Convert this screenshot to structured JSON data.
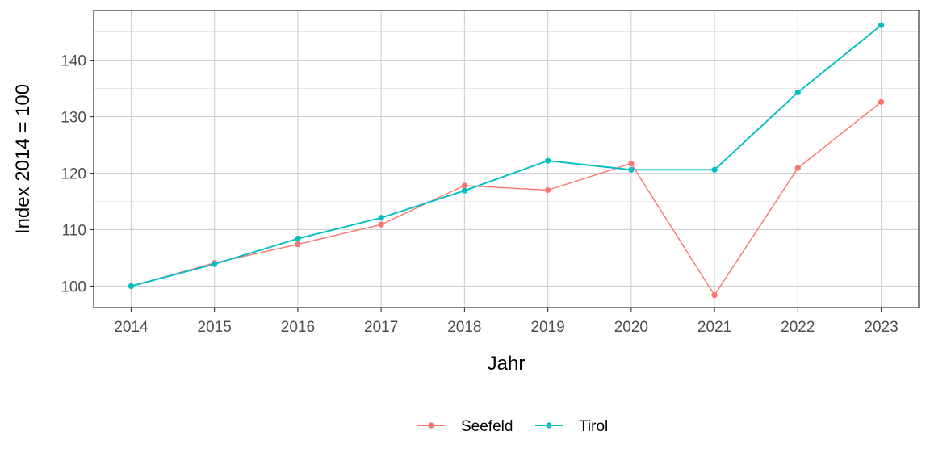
{
  "chart_data": {
    "type": "line",
    "title": "",
    "xlabel": "Jahr",
    "ylabel": "Index  2014  = 100",
    "x": [
      "2014",
      "2015",
      "2016",
      "2017",
      "2018",
      "2019",
      "2020",
      "2021",
      "2022",
      "2023"
    ],
    "xlim": [
      2013.55,
      2023.45
    ],
    "ylim": [
      96.2,
      148.8
    ],
    "yticks": [
      100,
      110,
      120,
      130,
      140
    ],
    "grid": true,
    "legend_position": "bottom",
    "series": [
      {
        "name": "Seefeld",
        "color": "#F8766D",
        "values": [
          100.0,
          104.1,
          107.4,
          110.9,
          117.8,
          117.0,
          121.7,
          98.4,
          120.9,
          132.6
        ]
      },
      {
        "name": "Tirol",
        "color": "#00BFC4",
        "values": [
          100.0,
          103.9,
          108.4,
          112.1,
          116.9,
          122.2,
          120.6,
          120.6,
          134.3,
          146.2
        ]
      }
    ]
  }
}
